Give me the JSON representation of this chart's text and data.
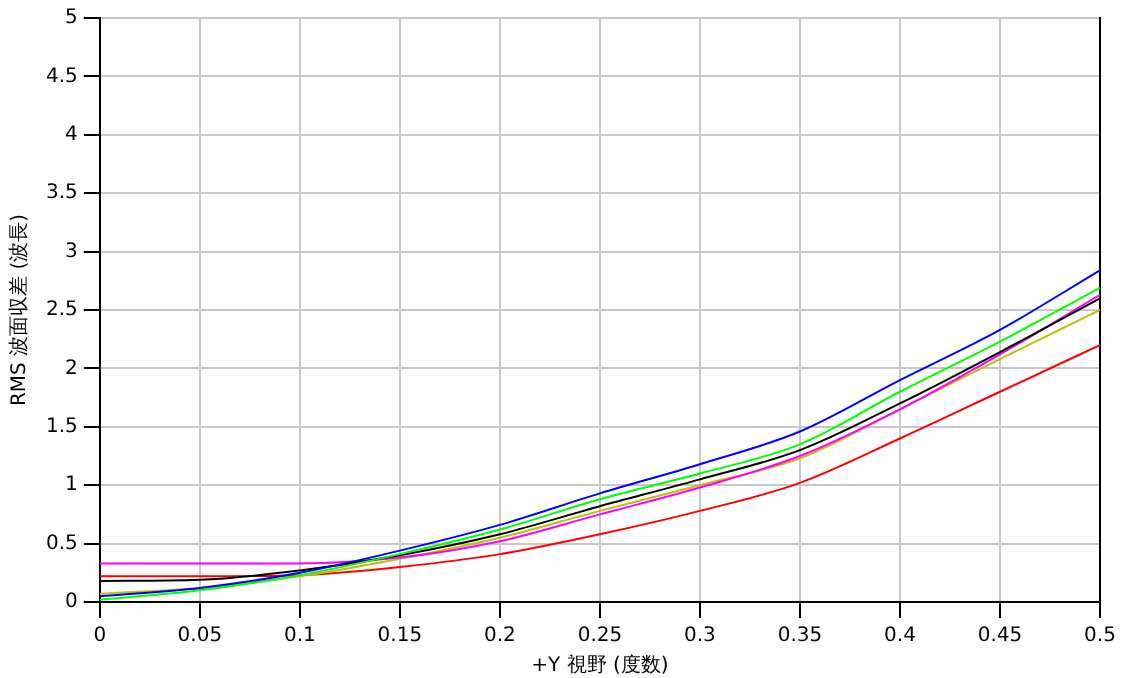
{
  "chart_data": {
    "type": "line",
    "xlabel": "+Y 視野 (度数)",
    "ylabel": "RMS 波面収差 (波長)",
    "x": [
      0,
      0.05,
      0.1,
      0.15,
      0.2,
      0.25,
      0.3,
      0.35,
      0.4,
      0.45,
      0.5
    ],
    "series": [
      {
        "color": "#0000ff",
        "values": [
          0.05,
          0.12,
          0.25,
          0.44,
          0.66,
          0.93,
          1.18,
          1.46,
          1.9,
          2.33,
          2.84
        ]
      },
      {
        "color": "#00ff00",
        "values": [
          0.02,
          0.1,
          0.23,
          0.41,
          0.62,
          0.88,
          1.1,
          1.35,
          1.8,
          2.23,
          2.69
        ]
      },
      {
        "color": "#000000",
        "values": [
          0.18,
          0.19,
          0.27,
          0.4,
          0.58,
          0.82,
          1.05,
          1.3,
          1.7,
          2.14,
          2.6
        ]
      },
      {
        "color": "#ff00ff",
        "values": [
          0.33,
          0.33,
          0.33,
          0.38,
          0.52,
          0.75,
          0.98,
          1.25,
          1.65,
          2.12,
          2.63
        ]
      },
      {
        "color": "#c0c000",
        "values": [
          0.07,
          0.12,
          0.22,
          0.37,
          0.55,
          0.78,
          1.0,
          1.23,
          1.65,
          2.08,
          2.5
        ]
      },
      {
        "color": "#ff0000",
        "values": [
          0.22,
          0.22,
          0.23,
          0.3,
          0.41,
          0.58,
          0.78,
          1.02,
          1.4,
          1.8,
          2.2
        ]
      }
    ],
    "xlim": [
      0,
      0.5
    ],
    "xticks": [
      0,
      0.05,
      0.1,
      0.15,
      0.2,
      0.25,
      0.3,
      0.35,
      0.4,
      0.45,
      0.5
    ],
    "ylim": [
      0,
      5
    ],
    "yticks": [
      0,
      0.5,
      1,
      1.5,
      2,
      2.5,
      3,
      3.5,
      4,
      4.5,
      5
    ],
    "grid": true,
    "legend": false,
    "marker": "none",
    "line_style": "solid"
  }
}
